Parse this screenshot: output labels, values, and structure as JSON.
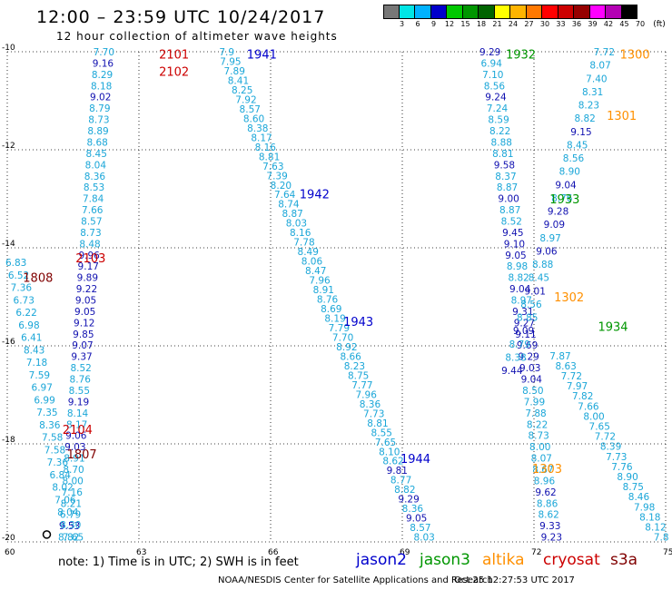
{
  "header": {
    "title": "12:00 – 23:59 UTC 10/24/2017",
    "subtitle": "12 hour collection of altimeter wave heights"
  },
  "scale": {
    "unit": "(ft)",
    "labels": [
      "3",
      "6",
      "9",
      "12",
      "15",
      "18",
      "21",
      "24",
      "27",
      "30",
      "33",
      "36",
      "39",
      "42",
      "45",
      "70"
    ],
    "colors": [
      "#777777",
      "#00e5e5",
      "#00b2ff",
      "#0000cc",
      "#00c800",
      "#009600",
      "#006400",
      "#ffff00",
      "#ffb400",
      "#ff7800",
      "#ff0000",
      "#cc0000",
      "#960000",
      "#ff00ff",
      "#b400b4",
      "#000000"
    ]
  },
  "map": {
    "lat_ticks": [
      "-10",
      "-12",
      "-14",
      "-16",
      "-18",
      "-20"
    ],
    "lon_ticks": [
      "60",
      "63",
      "66",
      "69",
      "72",
      "75"
    ],
    "lon_range": [
      60,
      75
    ],
    "lat_range": [
      -20,
      -10
    ]
  },
  "colors": {
    "h8": "#1aa6d8",
    "h9": "#1010b0",
    "jason2": "#0000cc",
    "jason3": "#009600",
    "altika": "#ff9000",
    "cryosat": "#cc0000",
    "s3a": "#800000"
  },
  "tracks": [
    {
      "sat": "cryosat",
      "start": [
        62.2,
        -10
      ],
      "end": [
        61.4,
        -19.9
      ],
      "values": [
        "7.70",
        "9.16",
        "8.29",
        "8.18",
        "9.02",
        "8.79",
        "8.73",
        "8.89",
        "8.68",
        "8.45",
        "8.04",
        "8.36",
        "8.53",
        "7.84",
        "7.66",
        "8.57",
        "8.73",
        "8.48",
        "9.96",
        "9.17",
        "9.89",
        "9.22",
        "9.05",
        "9.05",
        "9.12",
        "9.85",
        "9.07",
        "9.37",
        "8.52",
        "8.76",
        "8.55",
        "9.19",
        "8.14",
        "8.17",
        "9.06",
        "9.03",
        "8.91",
        "8.70",
        "8.00",
        "7.16",
        "8.21",
        "6.79",
        "9.53",
        "8.82"
      ]
    },
    {
      "sat": "jason2",
      "start": [
        65.0,
        -10
      ],
      "end": [
        69.5,
        -19.9
      ],
      "values": [
        "7.9",
        "7.95",
        "7.89",
        "8.41",
        "8.25",
        "7.92",
        "8.57",
        "8.60",
        "8.38",
        "8.17",
        "8.16",
        "8.81",
        "7.63",
        "7.39",
        "8.20",
        "7.64",
        "8.74",
        "8.87",
        "8.03",
        "8.16",
        "7.78",
        "8.49",
        "8.06",
        "8.47",
        "7.96",
        "8.91",
        "8.76",
        "8.69",
        "8.19",
        "7.79",
        "7.70",
        "8.92",
        "8.66",
        "8.23",
        "8.75",
        "7.77",
        "7.96",
        "8.36",
        "7.73",
        "8.81",
        "8.55",
        "7.65",
        "8.10",
        "8.62",
        "9.81",
        "8.77",
        "8.82",
        "9.29",
        "8.36",
        "9.05",
        "8.57",
        "8.03"
      ]
    },
    {
      "sat": "jason3",
      "start": [
        71.0,
        -10
      ],
      "end": [
        72.4,
        -19.9
      ],
      "values": [
        "9.29",
        "6.94",
        "7.10",
        "8.56",
        "9.24",
        "7.24",
        "8.59",
        "8.22",
        "8.88",
        "8.81",
        "9.58",
        "8.37",
        "8.87",
        "9.00",
        "8.87",
        "8.52",
        "9.45",
        "9.10",
        "9.05",
        "8.98",
        "8.82",
        "9.04",
        "8.97",
        "9.31",
        "9.27",
        "9.11",
        "9.69",
        "9.29",
        "9.03",
        "9.04",
        "8.50",
        "7.99",
        "7.88",
        "8.22",
        "8.73",
        "8.00",
        "8.07",
        "8.67",
        "8.96",
        "9.62",
        "8.86",
        "8.62",
        "9.33",
        "9.23"
      ]
    },
    {
      "sat": "altika",
      "start": [
        73.6,
        -10
      ],
      "end": [
        71.5,
        -16.5
      ],
      "values": [
        "7.72",
        "8.07",
        "7.40",
        "8.31",
        "8.23",
        "8.82",
        "9.15",
        "8.45",
        "8.56",
        "8.90",
        "9.04",
        "8.76",
        "9.28",
        "9.09",
        "8.97",
        "9.06",
        "8.88",
        "8.45",
        "9.01",
        "8.56",
        "8.85",
        "9.09",
        "8.79",
        "8.38",
        "9.44"
      ]
    },
    {
      "sat": "jason3",
      "start": [
        72.6,
        -16.2
      ],
      "end": [
        74.9,
        -19.9
      ],
      "values": [
        "7.87",
        "8.63",
        "7.72",
        "7.97",
        "7.82",
        "7.66",
        "8.00",
        "7.65",
        "7.72",
        "8.39",
        "7.73",
        "7.76",
        "8.90",
        "8.75",
        "8.46",
        "7.98",
        "8.18",
        "8.12",
        "7.8"
      ]
    },
    {
      "sat": "s3a",
      "start": [
        60.2,
        -14.3
      ],
      "end": [
        61.5,
        -19.9
      ],
      "values": [
        "6.83",
        "6.52",
        "7.36",
        "6.73",
        "6.22",
        "6.98",
        "6.41",
        "8.43",
        "7.18",
        "7.59",
        "6.97",
        "6.99",
        "7.35",
        "8.36",
        "7.58",
        "7.58",
        "7.36",
        "6.84",
        "8.02",
        "7.06",
        "8.04",
        "8.30",
        "7.65"
      ]
    }
  ],
  "pass_labels": [
    {
      "text": "2101",
      "sat": "cryosat",
      "lon": 63.8,
      "lat": -10.05
    },
    {
      "text": "2102",
      "sat": "cryosat",
      "lon": 63.8,
      "lat": -10.4
    },
    {
      "text": "1941",
      "sat": "jason2",
      "lon": 65.8,
      "lat": -10.05
    },
    {
      "text": "1932",
      "sat": "jason3",
      "lon": 71.7,
      "lat": -10.05
    },
    {
      "text": "1300",
      "sat": "altika",
      "lon": 74.3,
      "lat": -10.05
    },
    {
      "text": "1301",
      "sat": "altika",
      "lon": 74.0,
      "lat": -11.3
    },
    {
      "text": "1942",
      "sat": "jason2",
      "lon": 67.0,
      "lat": -12.9
    },
    {
      "text": "1933",
      "sat": "jason3",
      "lon": 72.7,
      "lat": -13.0
    },
    {
      "text": "2103",
      "sat": "cryosat",
      "lon": 61.9,
      "lat": -14.2
    },
    {
      "text": "1808",
      "sat": "s3a",
      "lon": 60.7,
      "lat": -14.6
    },
    {
      "text": "1302",
      "sat": "altika",
      "lon": 72.8,
      "lat": -15.0
    },
    {
      "text": "1943",
      "sat": "jason2",
      "lon": 68.0,
      "lat": -15.5
    },
    {
      "text": "1934",
      "sat": "jason3",
      "lon": 73.8,
      "lat": -15.6
    },
    {
      "text": "2104",
      "sat": "cryosat",
      "lon": 61.6,
      "lat": -17.7
    },
    {
      "text": "1807",
      "sat": "s3a",
      "lon": 61.7,
      "lat": -18.2
    },
    {
      "text": "1944",
      "sat": "jason2",
      "lon": 69.3,
      "lat": -18.3
    },
    {
      "text": "1303",
      "sat": "altika",
      "lon": 72.3,
      "lat": -18.5
    }
  ],
  "note": "note:  1) Time is in UTC;  2) SWH is in feet",
  "legend": [
    {
      "name": "jason2",
      "sat": "jason2"
    },
    {
      "name": "jason3",
      "sat": "jason3"
    },
    {
      "name": "altika",
      "sat": "altika"
    },
    {
      "name": "cryosat",
      "sat": "cryosat"
    },
    {
      "name": "s3a",
      "sat": "s3a"
    }
  ],
  "credit": "NOAA/NESDIS Center for Satellite Applications and Research",
  "timestamp": "Oct 25 12:27:53 UTC 2017"
}
